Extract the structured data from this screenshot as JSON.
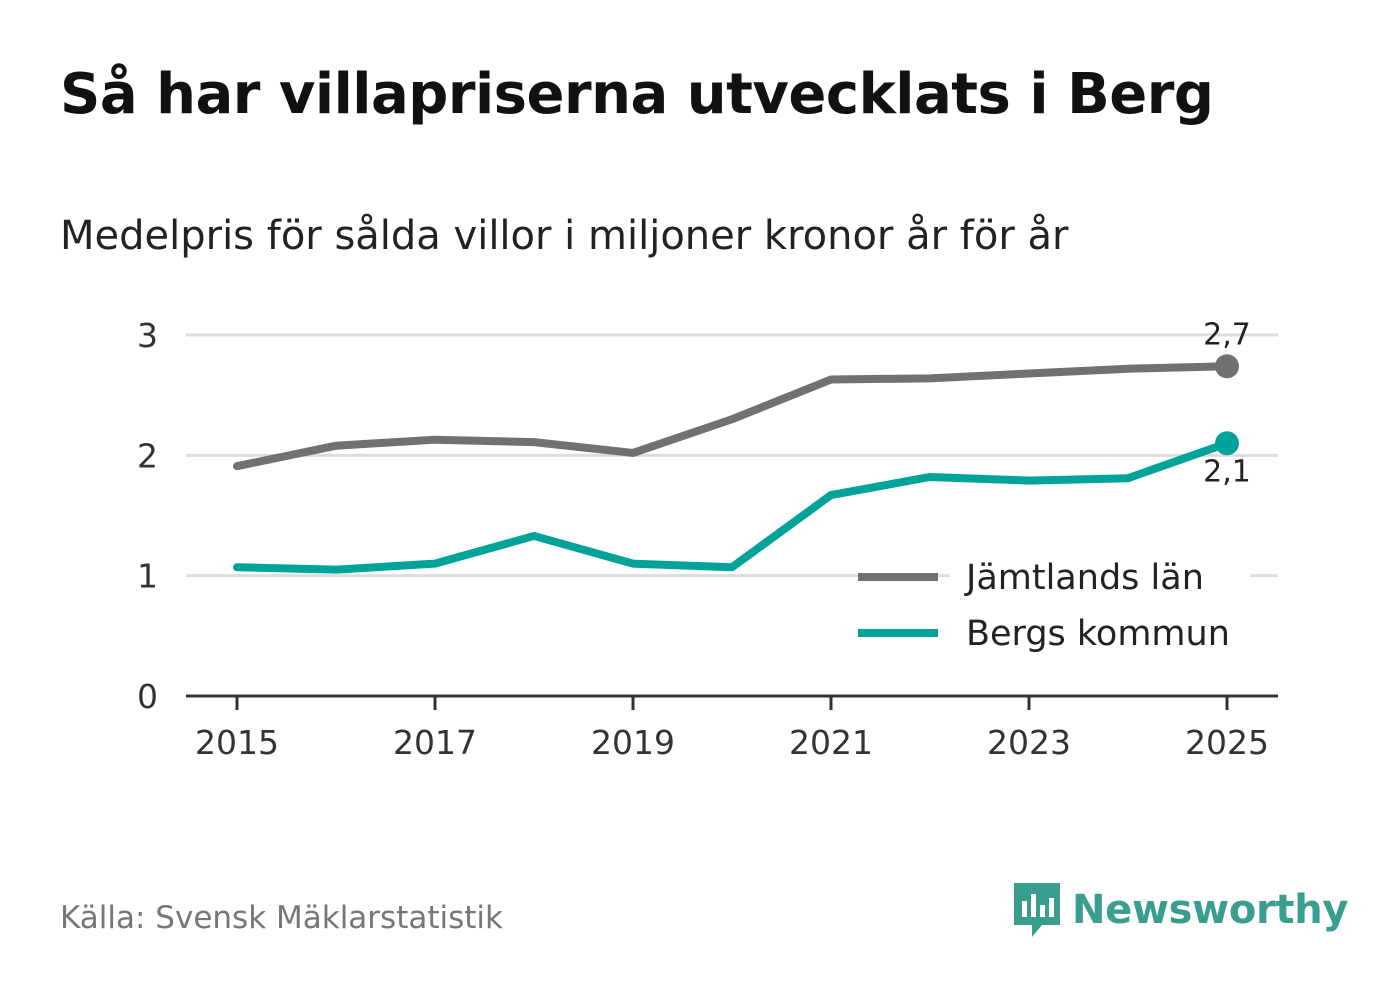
{
  "header": {
    "title": "Så har villapriserna utvecklats i Berg",
    "subtitle": "Medelpris för sålda villor i miljoner kronor år för år"
  },
  "footer": {
    "source": "Källa: Svensk Mäklarstatistik",
    "brand": "Newsworthy"
  },
  "colors": {
    "jamtland": "#707075",
    "berg": "#00a39a",
    "brand": "#3a9e8f",
    "grid": "#dddddd",
    "axis": "#333333"
  },
  "chart_data": {
    "type": "line",
    "title": "Så har villapriserna utvecklats i Berg",
    "subtitle": "Medelpris för sålda villor i miljoner kronor år för år",
    "xlabel": "",
    "ylabel": "",
    "x": [
      2015,
      2016,
      2017,
      2018,
      2019,
      2020,
      2021,
      2022,
      2023,
      2024,
      2025
    ],
    "x_ticks": [
      "2015",
      "2017",
      "2019",
      "2021",
      "2023",
      "2025"
    ],
    "x_tick_values": [
      2015,
      2017,
      2019,
      2021,
      2023,
      2025
    ],
    "ylim": [
      0,
      3
    ],
    "y_ticks": [
      "0",
      "1",
      "2",
      "3"
    ],
    "y_tick_values": [
      0,
      1,
      2,
      3
    ],
    "grid": true,
    "legend_position": "bottom-right",
    "series": [
      {
        "name": "Jämtlands län",
        "color": "#707075",
        "values": [
          1.91,
          2.08,
          2.13,
          2.11,
          2.02,
          2.3,
          2.63,
          2.64,
          2.68,
          2.72,
          2.74
        ],
        "end_label": "2,7"
      },
      {
        "name": "Bergs kommun",
        "color": "#00a39a",
        "values": [
          1.07,
          1.05,
          1.1,
          1.33,
          1.1,
          1.07,
          1.67,
          1.82,
          1.79,
          1.81,
          2.1
        ],
        "end_label": "2,1"
      }
    ]
  }
}
